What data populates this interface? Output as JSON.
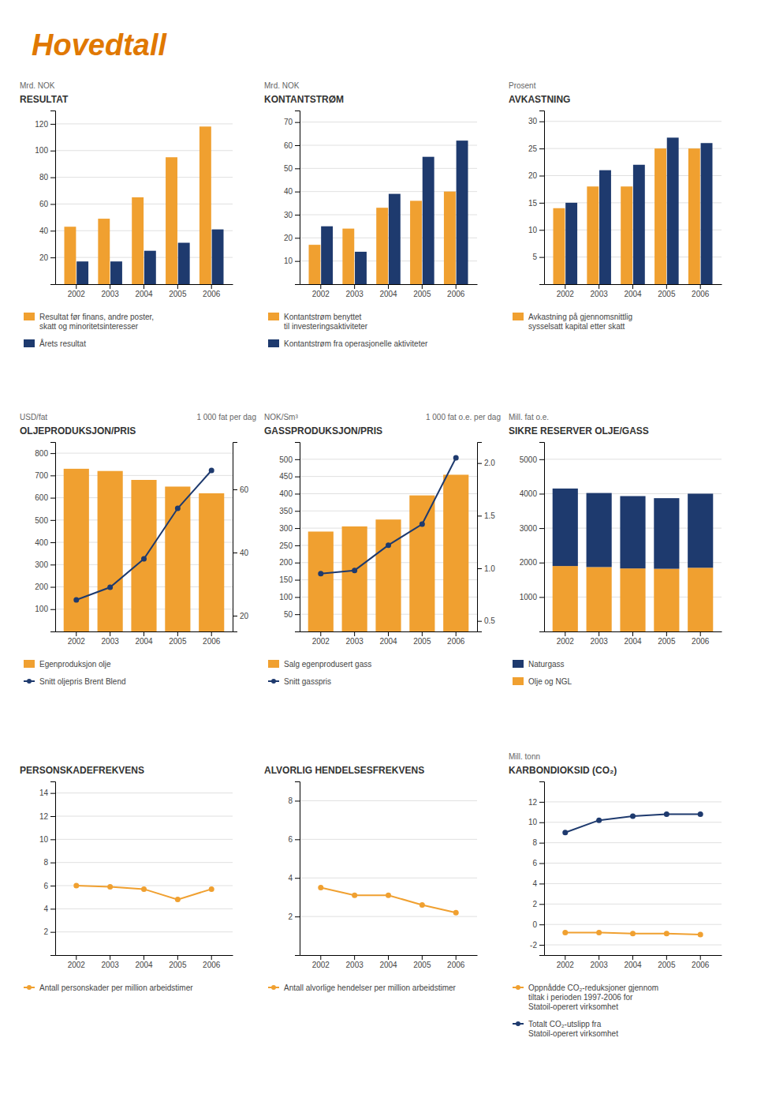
{
  "title": "Hovedtall",
  "chart_data": [
    {
      "type": "bar",
      "title": "RESULTAT",
      "ylabel": "Mrd. NOK",
      "categories": [
        "2002",
        "2003",
        "2004",
        "2005",
        "2006"
      ],
      "series": [
        {
          "name": "Resultat før finans, andre poster,\nskatt og minoritetsinteresser",
          "color": "#f0a030",
          "values": [
            43,
            49,
            65,
            95,
            118
          ]
        },
        {
          "name": "Årets resultat",
          "color": "#1e3a6e",
          "values": [
            17,
            17,
            25,
            31,
            41
          ]
        }
      ],
      "ylim": [
        0,
        130
      ],
      "yticks": [
        20,
        40,
        60,
        80,
        100,
        120
      ],
      "grid": true
    },
    {
      "type": "bar",
      "title": "KONTANTSTRØM",
      "ylabel": "Mrd. NOK",
      "categories": [
        "2002",
        "2003",
        "2004",
        "2005",
        "2006"
      ],
      "series": [
        {
          "name": "Kontantstrøm benyttet\ntil investeringsaktiviteter",
          "color": "#f0a030",
          "values": [
            17,
            24,
            33,
            36,
            40
          ]
        },
        {
          "name": "Kontantstrøm fra operasjonelle aktiviteter",
          "color": "#1e3a6e",
          "values": [
            25,
            14,
            39,
            55,
            62
          ]
        }
      ],
      "ylim": [
        0,
        75
      ],
      "yticks": [
        10,
        20,
        30,
        40,
        50,
        60,
        70
      ],
      "grid": true
    },
    {
      "type": "bar",
      "title": "AVKASTNING",
      "ylabel": "Prosent",
      "categories": [
        "2002",
        "2003",
        "2004",
        "2005",
        "2006"
      ],
      "series": [
        {
          "name": "Avkastning på gjennomsnittlig\nsysselsatt kapital etter skatt",
          "color": "#f0a030",
          "values": [
            14,
            18,
            18,
            25,
            25
          ]
        },
        {
          "color": "#1e3a6e",
          "values": [
            15,
            21,
            22,
            27,
            26
          ]
        }
      ],
      "ylim": [
        0,
        32
      ],
      "yticks": [
        5,
        10,
        15,
        20,
        25,
        30
      ],
      "grid": true
    },
    {
      "type": "bar",
      "title": "OLJEPRODUKSJON/PRIS",
      "ylabel": "USD/fat",
      "y2label": "1 000 fat per dag",
      "categories": [
        "2002",
        "2003",
        "2004",
        "2005",
        "2006"
      ],
      "series": [
        {
          "name": "Egenproduksjon olje",
          "color": "#f0a030",
          "type": "bar",
          "values": [
            730,
            720,
            680,
            650,
            620
          ]
        },
        {
          "name": "Snitt oljepris Brent Blend",
          "color": "#1e3a6e",
          "type": "line",
          "marker": "circle",
          "axis": "y2",
          "values": [
            25,
            29,
            38,
            54,
            66
          ]
        }
      ],
      "ylim": [
        0,
        850
      ],
      "yticks": [
        100,
        200,
        300,
        400,
        500,
        600,
        700,
        800
      ],
      "y2lim": [
        15,
        75
      ],
      "y2ticks": [
        20,
        40,
        60
      ],
      "grid": true
    },
    {
      "type": "bar",
      "title": "GASSPRODUKSJON/PRIS",
      "ylabel": "NOK/Sm³",
      "y2label": "1 000 fat o.e. per dag",
      "categories": [
        "2002",
        "2003",
        "2004",
        "2005",
        "2006"
      ],
      "series": [
        {
          "name": "Salg egenprodusert gass",
          "color": "#f0a030",
          "type": "bar",
          "values": [
            290,
            305,
            325,
            395,
            455
          ]
        },
        {
          "name": "Snitt gasspris",
          "color": "#1e3a6e",
          "type": "line",
          "marker": "circle",
          "axis": "y2",
          "values": [
            0.95,
            0.98,
            1.22,
            1.42,
            2.05
          ]
        }
      ],
      "ylim": [
        0,
        550
      ],
      "yticks": [
        50,
        100,
        150,
        200,
        250,
        300,
        350,
        400,
        450,
        500
      ],
      "y2lim": [
        0.4,
        2.2
      ],
      "y2ticks": [
        0.5,
        {
          "value": 1,
          "label": "1.0"
        },
        1.5,
        {
          "value": 2,
          "label": "2.0"
        }
      ],
      "grid": true
    },
    {
      "type": "bar",
      "title": "SIKRE RESERVER OLJE/GASS",
      "ylabel": "Mill. fat o.e.",
      "stacked": true,
      "categories": [
        "2002",
        "2003",
        "2004",
        "2005",
        "2006"
      ],
      "series": [
        {
          "name": "Olje og NGL",
          "color": "#f0a030",
          "values": [
            1900,
            1870,
            1830,
            1820,
            1850
          ]
        },
        {
          "name": "Naturgass",
          "color": "#1e3a6e",
          "values": [
            2250,
            2150,
            2100,
            2050,
            2150
          ]
        }
      ],
      "ylim": [
        0,
        5500
      ],
      "yticks": [
        1000,
        2000,
        3000,
        4000,
        5000
      ],
      "grid": true
    },
    {
      "type": "line",
      "title": "PERSONSKADEFREKVENS",
      "categories": [
        "2002",
        "2003",
        "2004",
        "2005",
        "2006"
      ],
      "series": [
        {
          "name": "Antall personskader per million arbeidstimer",
          "color": "#f0a030",
          "marker": "circle",
          "values": [
            6.0,
            5.9,
            5.7,
            4.8,
            5.7
          ]
        }
      ],
      "ylim": [
        0,
        15
      ],
      "yticks": [
        2,
        4,
        6,
        8,
        10,
        12,
        14
      ],
      "grid": true
    },
    {
      "type": "line",
      "title": "ALVORLIG HENDELSESFREKVENS",
      "categories": [
        "2002",
        "2003",
        "2004",
        "2005",
        "2006"
      ],
      "series": [
        {
          "name": "Antall alvorlige hendelser per million arbeidstimer",
          "color": "#f0a030",
          "marker": "circle",
          "values": [
            3.5,
            3.1,
            3.1,
            2.6,
            2.2
          ]
        }
      ],
      "ylim": [
        0,
        9
      ],
      "yticks": [
        2,
        4,
        6,
        8
      ],
      "grid": true
    },
    {
      "type": "line",
      "title": "KARBONDIOKSID (CO₂)",
      "ylabel": "Mill. tonn",
      "categories": [
        "2002",
        "2003",
        "2004",
        "2005",
        "2006"
      ],
      "series": [
        {
          "name": "Oppnådde CO₂-reduksjoner gjennom\ntiltak i perioden 1997-2006 for\nStatoil-operert virksomhet",
          "color": "#f0a030",
          "marker": "circle",
          "values": [
            -0.8,
            -0.8,
            -0.9,
            -0.9,
            -1.0
          ]
        },
        {
          "name": "Totalt CO₂-utslipp fra\nStatoil-operert virksomhet",
          "color": "#1e3a6e",
          "marker": "circle",
          "values": [
            9.0,
            10.2,
            10.6,
            10.8,
            10.8
          ]
        }
      ],
      "ylim": [
        -3,
        14
      ],
      "yticks": [
        -2,
        0,
        2,
        4,
        6,
        8,
        10,
        12
      ],
      "grid": true
    }
  ]
}
